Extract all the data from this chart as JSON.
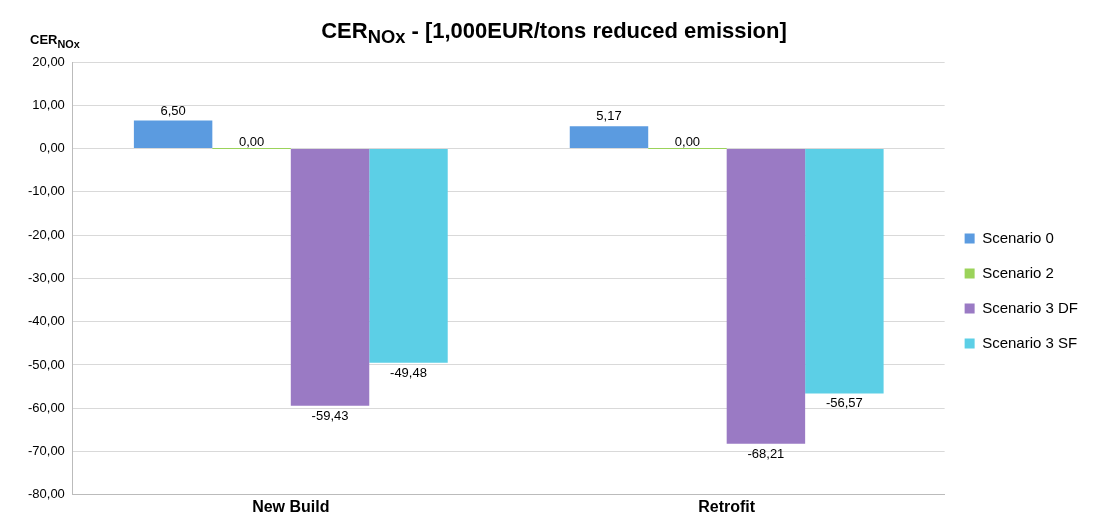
{
  "chart_data": {
    "type": "bar",
    "title": "CER$_{NOx}$ - [1,000EUR/tons reduced emission]",
    "ylabel": "CER$_{NOx}$",
    "categories": [
      "New Build",
      "Retrofit"
    ],
    "series": [
      {
        "name": "Scenario 0",
        "color": "#5b9be0",
        "values": [
          6.5,
          5.17
        ],
        "value_labels": [
          "6,50",
          "5,17"
        ]
      },
      {
        "name": "Scenario 2",
        "color": "#9bd35a",
        "values": [
          0,
          0
        ],
        "value_labels": [
          "0,00",
          "0,00"
        ]
      },
      {
        "name": "Scenario 3 DF",
        "color": "#9a7ac4",
        "values": [
          -59.43,
          -68.21
        ],
        "value_labels": [
          "-59,43",
          "-68,21"
        ]
      },
      {
        "name": "Scenario 3 SF",
        "color": "#5ccfe6",
        "values": [
          -49.48,
          -56.57
        ],
        "value_labels": [
          "-49,48",
          "-56,57"
        ]
      }
    ],
    "ylim": [
      -80,
      20
    ],
    "yticks": [
      {
        "value": -80,
        "label": "-80,00"
      },
      {
        "value": -70,
        "label": "-70,00"
      },
      {
        "value": -60,
        "label": "-60,00"
      },
      {
        "value": -50,
        "label": "-50,00"
      },
      {
        "value": -40,
        "label": "-40,00"
      },
      {
        "value": -30,
        "label": "-30,00"
      },
      {
        "value": -20,
        "label": "-20,00"
      },
      {
        "value": -10,
        "label": "-10,00"
      },
      {
        "value": 0,
        "label": "0,00"
      },
      {
        "value": 10,
        "label": "10,00"
      },
      {
        "value": 20,
        "label": "20,00"
      }
    ],
    "grid": "y",
    "legend": "right"
  }
}
